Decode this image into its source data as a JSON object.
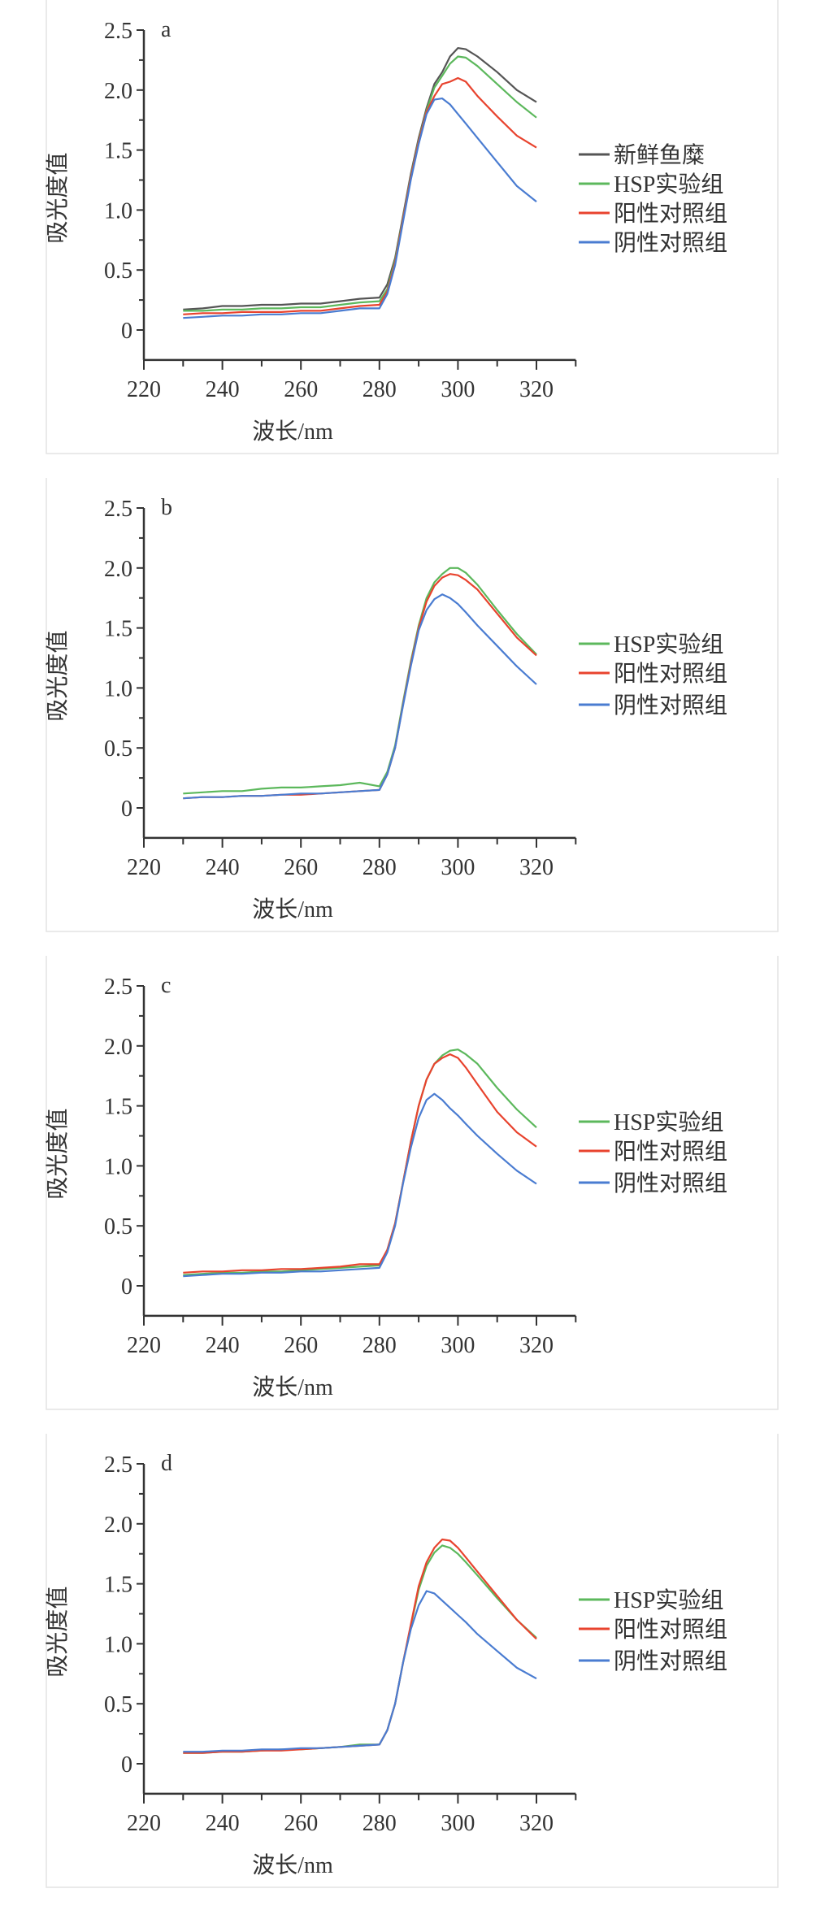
{
  "colors": {
    "fresh": "#555555",
    "hsp": "#5cb85c",
    "positive": "#e8432e",
    "negative": "#4a7cd1",
    "axis": "#333333"
  },
  "chart_data": [
    {
      "type": "line",
      "panel_label": "a",
      "xlabel": "波长/nm",
      "ylabel": "吸光度值",
      "xlim": [
        220,
        330
      ],
      "ylim": [
        -0.25,
        2.5
      ],
      "xticks": [
        "220",
        "240",
        "260",
        "280",
        "300",
        "320"
      ],
      "yticks": [
        "0",
        "0.5",
        "1.0",
        "1.5",
        "2.0",
        "2.5"
      ],
      "legend_position": "right",
      "x": [
        230,
        235,
        240,
        245,
        250,
        255,
        260,
        265,
        270,
        275,
        280,
        282,
        284,
        286,
        288,
        290,
        292,
        294,
        296,
        298,
        300,
        302,
        305,
        310,
        315,
        320
      ],
      "series": [
        {
          "name": "新鲜鱼糜",
          "color_key": "fresh",
          "values": [
            0.17,
            0.18,
            0.2,
            0.2,
            0.21,
            0.21,
            0.22,
            0.22,
            0.24,
            0.26,
            0.27,
            0.38,
            0.6,
            0.95,
            1.3,
            1.6,
            1.85,
            2.05,
            2.15,
            2.28,
            2.35,
            2.34,
            2.28,
            2.15,
            2.0,
            1.9
          ]
        },
        {
          "name": "HSP实验组",
          "color_key": "hsp",
          "values": [
            0.16,
            0.16,
            0.17,
            0.17,
            0.18,
            0.18,
            0.19,
            0.19,
            0.21,
            0.23,
            0.24,
            0.34,
            0.58,
            0.93,
            1.28,
            1.58,
            1.83,
            2.02,
            2.12,
            2.22,
            2.28,
            2.27,
            2.2,
            2.05,
            1.9,
            1.77
          ]
        },
        {
          "name": "阳性对照组",
          "color_key": "positive",
          "values": [
            0.13,
            0.14,
            0.14,
            0.15,
            0.15,
            0.15,
            0.16,
            0.16,
            0.18,
            0.2,
            0.21,
            0.32,
            0.56,
            0.92,
            1.27,
            1.57,
            1.82,
            1.95,
            2.05,
            2.07,
            2.1,
            2.07,
            1.95,
            1.78,
            1.62,
            1.52
          ]
        },
        {
          "name": "阴性对照组",
          "color_key": "negative",
          "values": [
            0.1,
            0.11,
            0.12,
            0.12,
            0.13,
            0.13,
            0.14,
            0.14,
            0.16,
            0.18,
            0.18,
            0.3,
            0.54,
            0.9,
            1.25,
            1.55,
            1.8,
            1.92,
            1.93,
            1.88,
            1.8,
            1.72,
            1.6,
            1.4,
            1.2,
            1.07
          ]
        }
      ]
    },
    {
      "type": "line",
      "panel_label": "b",
      "xlabel": "波长/nm",
      "ylabel": "吸光度值",
      "xlim": [
        220,
        330
      ],
      "ylim": [
        -0.25,
        2.5
      ],
      "xticks": [
        "220",
        "240",
        "260",
        "280",
        "300",
        "320"
      ],
      "yticks": [
        "0",
        "0.5",
        "1.0",
        "1.5",
        "2.0",
        "2.5"
      ],
      "legend_position": "right",
      "x": [
        230,
        235,
        240,
        245,
        250,
        255,
        260,
        265,
        270,
        275,
        280,
        282,
        284,
        286,
        288,
        290,
        292,
        294,
        296,
        298,
        300,
        302,
        305,
        310,
        315,
        320
      ],
      "series": [
        {
          "name": "HSP实验组",
          "color_key": "hsp",
          "values": [
            0.12,
            0.13,
            0.14,
            0.14,
            0.16,
            0.17,
            0.17,
            0.18,
            0.19,
            0.21,
            0.18,
            0.3,
            0.52,
            0.88,
            1.22,
            1.52,
            1.75,
            1.88,
            1.95,
            2.0,
            2.0,
            1.96,
            1.86,
            1.65,
            1.45,
            1.28
          ]
        },
        {
          "name": "阳性对照组",
          "color_key": "positive",
          "values": [
            0.08,
            0.09,
            0.09,
            0.1,
            0.1,
            0.11,
            0.11,
            0.12,
            0.13,
            0.14,
            0.15,
            0.28,
            0.5,
            0.86,
            1.2,
            1.5,
            1.72,
            1.85,
            1.92,
            1.95,
            1.94,
            1.9,
            1.82,
            1.62,
            1.42,
            1.27
          ]
        },
        {
          "name": "阴性对照组",
          "color_key": "negative",
          "values": [
            0.08,
            0.09,
            0.09,
            0.1,
            0.1,
            0.11,
            0.12,
            0.12,
            0.13,
            0.14,
            0.15,
            0.28,
            0.5,
            0.85,
            1.18,
            1.48,
            1.65,
            1.74,
            1.78,
            1.75,
            1.7,
            1.63,
            1.52,
            1.35,
            1.18,
            1.03
          ]
        }
      ]
    },
    {
      "type": "line",
      "panel_label": "c",
      "xlabel": "波长/nm",
      "ylabel": "吸光度值",
      "xlim": [
        220,
        330
      ],
      "ylim": [
        -0.25,
        2.5
      ],
      "xticks": [
        "220",
        "240",
        "260",
        "280",
        "300",
        "320"
      ],
      "yticks": [
        "0",
        "0.5",
        "1.0",
        "1.5",
        "2.0",
        "2.5"
      ],
      "legend_position": "right",
      "x": [
        230,
        235,
        240,
        245,
        250,
        255,
        260,
        265,
        270,
        275,
        280,
        282,
        284,
        286,
        288,
        290,
        292,
        294,
        296,
        298,
        300,
        302,
        305,
        310,
        315,
        320
      ],
      "series": [
        {
          "name": "HSP实验组",
          "color_key": "hsp",
          "values": [
            0.09,
            0.1,
            0.11,
            0.11,
            0.12,
            0.12,
            0.13,
            0.14,
            0.15,
            0.16,
            0.17,
            0.3,
            0.52,
            0.86,
            1.2,
            1.5,
            1.72,
            1.85,
            1.92,
            1.96,
            1.97,
            1.93,
            1.85,
            1.65,
            1.47,
            1.32
          ]
        },
        {
          "name": "阳性对照组",
          "color_key": "positive",
          "values": [
            0.11,
            0.12,
            0.12,
            0.13,
            0.13,
            0.14,
            0.14,
            0.15,
            0.16,
            0.18,
            0.18,
            0.3,
            0.52,
            0.86,
            1.2,
            1.5,
            1.72,
            1.85,
            1.9,
            1.93,
            1.9,
            1.82,
            1.68,
            1.45,
            1.28,
            1.16
          ]
        },
        {
          "name": "阴性对照组",
          "color_key": "negative",
          "values": [
            0.08,
            0.09,
            0.1,
            0.1,
            0.11,
            0.11,
            0.12,
            0.12,
            0.13,
            0.14,
            0.15,
            0.28,
            0.5,
            0.85,
            1.15,
            1.4,
            1.55,
            1.6,
            1.55,
            1.48,
            1.42,
            1.35,
            1.25,
            1.1,
            0.96,
            0.85
          ]
        }
      ]
    },
    {
      "type": "line",
      "panel_label": "d",
      "xlabel": "波长/nm",
      "ylabel": "吸光度值",
      "xlim": [
        220,
        330
      ],
      "ylim": [
        -0.25,
        2.5
      ],
      "xticks": [
        "220",
        "240",
        "260",
        "280",
        "300",
        "320"
      ],
      "yticks": [
        "0",
        "0.5",
        "1.0",
        "1.5",
        "2.0",
        "2.5"
      ],
      "legend_position": "right",
      "x": [
        230,
        235,
        240,
        245,
        250,
        255,
        260,
        265,
        270,
        275,
        280,
        282,
        284,
        286,
        288,
        290,
        292,
        294,
        296,
        298,
        300,
        302,
        305,
        310,
        315,
        320
      ],
      "series": [
        {
          "name": "HSP实验组",
          "color_key": "hsp",
          "values": [
            0.09,
            0.09,
            0.1,
            0.1,
            0.11,
            0.12,
            0.12,
            0.13,
            0.14,
            0.16,
            0.16,
            0.28,
            0.5,
            0.84,
            1.15,
            1.45,
            1.65,
            1.76,
            1.82,
            1.8,
            1.75,
            1.68,
            1.57,
            1.38,
            1.2,
            1.05
          ]
        },
        {
          "name": "阳性对照组",
          "color_key": "positive",
          "values": [
            0.09,
            0.09,
            0.1,
            0.1,
            0.11,
            0.11,
            0.12,
            0.13,
            0.14,
            0.15,
            0.16,
            0.28,
            0.5,
            0.84,
            1.16,
            1.48,
            1.68,
            1.8,
            1.87,
            1.86,
            1.8,
            1.72,
            1.6,
            1.4,
            1.2,
            1.04
          ]
        },
        {
          "name": "阴性对照组",
          "color_key": "negative",
          "values": [
            0.1,
            0.1,
            0.11,
            0.11,
            0.12,
            0.12,
            0.13,
            0.13,
            0.14,
            0.15,
            0.16,
            0.28,
            0.5,
            0.84,
            1.12,
            1.32,
            1.44,
            1.42,
            1.36,
            1.3,
            1.24,
            1.18,
            1.08,
            0.94,
            0.8,
            0.71
          ]
        }
      ]
    }
  ]
}
